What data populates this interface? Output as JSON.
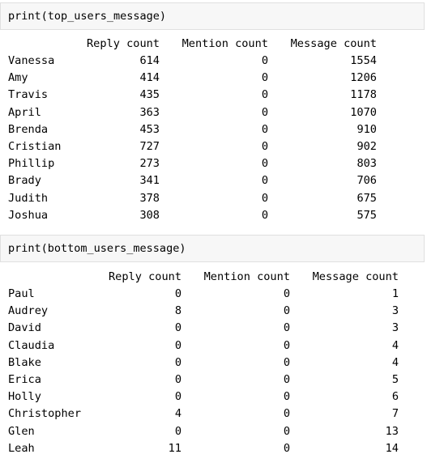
{
  "cells": [
    {
      "code": "print(top_users_message)",
      "headers": [
        "Reply count",
        "Mention count",
        "Message count"
      ],
      "rows": [
        {
          "name": "Vanessa",
          "reply": "614",
          "mention": "0",
          "message": "1554"
        },
        {
          "name": "Amy",
          "reply": "414",
          "mention": "0",
          "message": "1206"
        },
        {
          "name": "Travis",
          "reply": "435",
          "mention": "0",
          "message": "1178"
        },
        {
          "name": "April",
          "reply": "363",
          "mention": "0",
          "message": "1070"
        },
        {
          "name": "Brenda",
          "reply": "453",
          "mention": "0",
          "message": "910"
        },
        {
          "name": "Cristian",
          "reply": "727",
          "mention": "0",
          "message": "902"
        },
        {
          "name": "Phillip",
          "reply": "273",
          "mention": "0",
          "message": "803"
        },
        {
          "name": "Brady",
          "reply": "341",
          "mention": "0",
          "message": "706"
        },
        {
          "name": "Judith",
          "reply": "378",
          "mention": "0",
          "message": "675"
        },
        {
          "name": "Joshua",
          "reply": "308",
          "mention": "0",
          "message": "575"
        }
      ]
    },
    {
      "code": "print(bottom_users_message)",
      "headers": [
        "Reply count",
        "Mention count",
        "Message count"
      ],
      "rows": [
        {
          "name": "Paul",
          "reply": "0",
          "mention": "0",
          "message": "1"
        },
        {
          "name": "Audrey",
          "reply": "8",
          "mention": "0",
          "message": "3"
        },
        {
          "name": "David",
          "reply": "0",
          "mention": "0",
          "message": "3"
        },
        {
          "name": "Claudia",
          "reply": "0",
          "mention": "0",
          "message": "4"
        },
        {
          "name": "Blake",
          "reply": "0",
          "mention": "0",
          "message": "4"
        },
        {
          "name": "Erica",
          "reply": "0",
          "mention": "0",
          "message": "5"
        },
        {
          "name": "Holly",
          "reply": "0",
          "mention": "0",
          "message": "6"
        },
        {
          "name": "Christopher",
          "reply": "4",
          "mention": "0",
          "message": "7"
        },
        {
          "name": "Glen",
          "reply": "0",
          "mention": "0",
          "message": "13"
        },
        {
          "name": "Leah",
          "reply": "11",
          "mention": "0",
          "message": "14"
        }
      ]
    }
  ]
}
